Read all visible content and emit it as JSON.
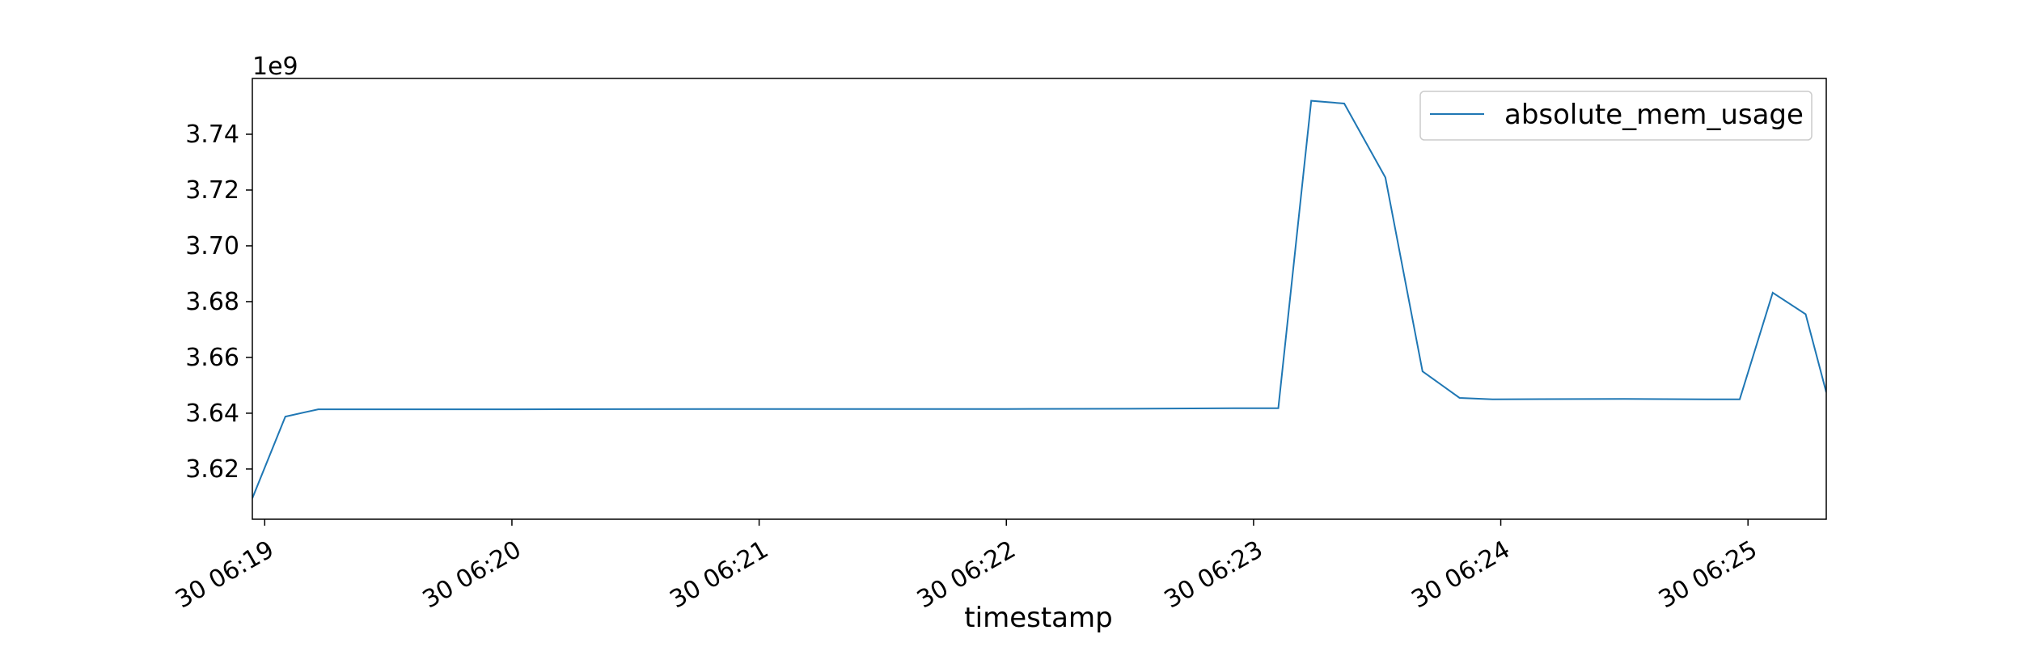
{
  "chart_data": {
    "type": "line",
    "xlabel": "timestamp",
    "ylabel": "",
    "offset_label": "1e9",
    "ylim": [
      3.602,
      3.76
    ],
    "xlim": [
      "30 06:18:57",
      "30 06:25:19"
    ],
    "grid": false,
    "legend_position": "top-right",
    "line_color": "#1f77b4",
    "x_ticks": [
      {
        "t": "30 06:19:00",
        "label": "30 06:19"
      },
      {
        "t": "30 06:20:00",
        "label": "30 06:20"
      },
      {
        "t": "30 06:21:00",
        "label": "30 06:21"
      },
      {
        "t": "30 06:22:00",
        "label": "30 06:22"
      },
      {
        "t": "30 06:23:00",
        "label": "30 06:23"
      },
      {
        "t": "30 06:24:00",
        "label": "30 06:24"
      },
      {
        "t": "30 06:25:00",
        "label": "30 06:25"
      }
    ],
    "y_ticks": [
      3.62,
      3.64,
      3.66,
      3.68,
      3.7,
      3.72,
      3.74
    ],
    "series": [
      {
        "name": "absolute_mem_usage",
        "x": [
          "30 06:18:57",
          "30 06:19:05",
          "30 06:19:13",
          "30 06:19:30",
          "30 06:20:00",
          "30 06:21:00",
          "30 06:21:40",
          "30 06:22:00",
          "30 06:22:30",
          "30 06:22:58",
          "30 06:23:06",
          "30 06:23:14",
          "30 06:23:22",
          "30 06:23:32",
          "30 06:23:41",
          "30 06:23:50",
          "30 06:23:58",
          "30 06:24:30",
          "30 06:24:50",
          "30 06:24:58",
          "30 06:25:06",
          "30 06:25:14",
          "30 06:25:19"
        ],
        "y": [
          3.6095,
          3.6388,
          3.6414,
          3.6414,
          3.6414,
          3.6415,
          3.6415,
          3.6415,
          3.6416,
          3.6418,
          3.6418,
          3.752,
          3.751,
          3.7245,
          3.655,
          3.6455,
          3.645,
          3.6451,
          3.645,
          3.645,
          3.6832,
          3.6755,
          3.6475
        ]
      }
    ]
  }
}
